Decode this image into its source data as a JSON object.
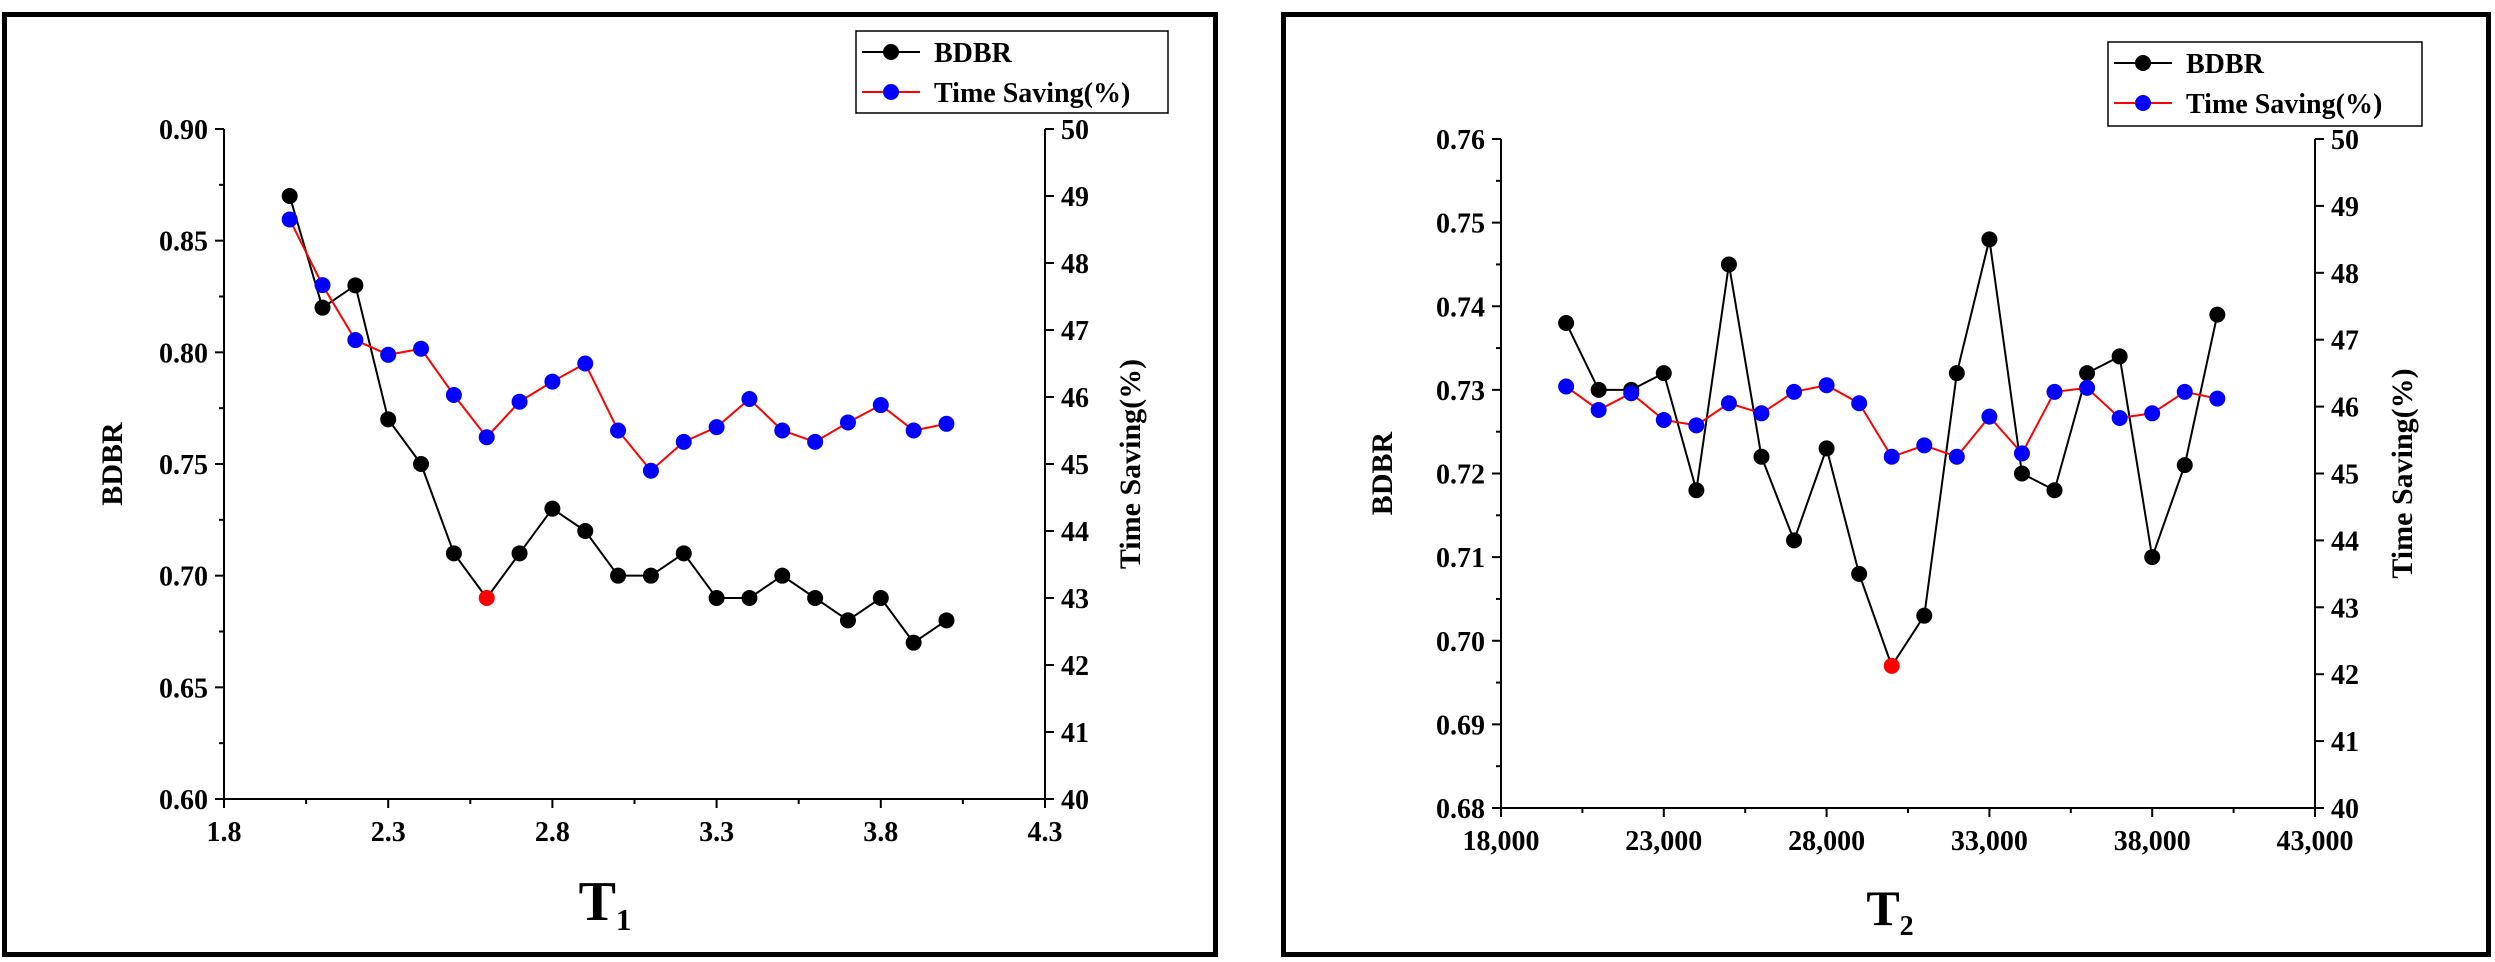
{
  "chart_data": [
    {
      "type": "line",
      "xlabel": "T",
      "xlabel_sub": "1",
      "ylabel": "BDBR",
      "y2label": "Time Saving(%)",
      "xlim": [
        1.8,
        4.3
      ],
      "ylim": [
        0.6,
        0.9
      ],
      "y2lim": [
        40,
        50
      ],
      "xticks": [
        1.8,
        2.3,
        2.8,
        3.3,
        3.8,
        4.3
      ],
      "xtick_labels": [
        "1.8",
        "2.3",
        "2.8",
        "3.3",
        "3.8",
        "4.3"
      ],
      "yticks": [
        0.6,
        0.65,
        0.7,
        0.75,
        0.8,
        0.85,
        0.9
      ],
      "ytick_labels": [
        "0.60",
        "0.65",
        "0.70",
        "0.75",
        "0.80",
        "0.85",
        "0.90"
      ],
      "y2ticks": [
        40,
        41,
        42,
        43,
        44,
        45,
        46,
        47,
        48,
        49,
        50
      ],
      "y2tick_labels": [
        "40",
        "41",
        "42",
        "43",
        "44",
        "45",
        "46",
        "47",
        "48",
        "49",
        "50"
      ],
      "legend": [
        "BDBR",
        "Time Saving(%)"
      ],
      "legend_position": "top-right",
      "x": [
        2.0,
        2.1,
        2.2,
        2.3,
        2.4,
        2.5,
        2.6,
        2.7,
        2.8,
        2.9,
        3.0,
        3.1,
        3.2,
        3.3,
        3.4,
        3.5,
        3.6,
        3.7,
        3.8,
        3.9,
        4.0
      ],
      "series": [
        {
          "name": "BDBR",
          "axis": "left",
          "line_color": "#000000",
          "marker_color": "#000000",
          "values": [
            0.87,
            0.82,
            0.83,
            0.77,
            0.75,
            0.71,
            0.69,
            0.71,
            0.73,
            0.72,
            0.7,
            0.7,
            0.71,
            0.69,
            0.69,
            0.7,
            0.69,
            0.68,
            0.69,
            0.67,
            0.68
          ],
          "highlight_index": 6,
          "highlight_color": "#ff0000"
        },
        {
          "name": "Time Saving(%)",
          "axis": "right",
          "line_color": "#ff0000",
          "marker_color": "#0000ff",
          "values": [
            48.65,
            47.67,
            46.85,
            46.63,
            46.72,
            46.03,
            45.4,
            45.93,
            46.23,
            46.5,
            45.5,
            44.9,
            45.33,
            45.55,
            45.97,
            45.5,
            45.33,
            45.62,
            45.88,
            45.5,
            45.6
          ]
        }
      ]
    },
    {
      "type": "line",
      "xlabel": "T",
      "xlabel_sub": "2",
      "ylabel": "BDBR",
      "y2label": "Time Saving(%)",
      "xlim": [
        18000,
        43000
      ],
      "ylim": [
        0.68,
        0.76
      ],
      "y2lim": [
        40,
        50
      ],
      "xticks": [
        18000,
        23000,
        28000,
        33000,
        38000,
        43000
      ],
      "xtick_labels": [
        "18,000",
        "23,000",
        "28,000",
        "33,000",
        "38,000",
        "43,000"
      ],
      "yticks": [
        0.68,
        0.69,
        0.7,
        0.71,
        0.72,
        0.73,
        0.74,
        0.75,
        0.76
      ],
      "ytick_labels": [
        "0.68",
        "0.69",
        "0.70",
        "0.71",
        "0.72",
        "0.73",
        "0.74",
        "0.75",
        "0.76"
      ],
      "y2ticks": [
        40,
        41,
        42,
        43,
        44,
        45,
        46,
        47,
        48,
        49,
        50
      ],
      "y2tick_labels": [
        "40",
        "41",
        "42",
        "43",
        "44",
        "45",
        "46",
        "47",
        "48",
        "49",
        "50"
      ],
      "legend": [
        "BDBR",
        "Time Saving(%)"
      ],
      "legend_position": "top-right",
      "x": [
        20000,
        21000,
        22000,
        23000,
        24000,
        25000,
        26000,
        27000,
        28000,
        29000,
        30000,
        31000,
        32000,
        33000,
        34000,
        35000,
        36000,
        37000,
        38000,
        39000,
        40000
      ],
      "series": [
        {
          "name": "BDBR",
          "axis": "left",
          "line_color": "#000000",
          "marker_color": "#000000",
          "values": [
            0.738,
            0.73,
            0.73,
            0.732,
            0.718,
            0.745,
            0.722,
            0.712,
            0.723,
            0.708,
            0.697,
            0.703,
            0.732,
            0.748,
            0.72,
            0.718,
            0.732,
            0.734,
            0.71,
            0.721,
            0.739
          ],
          "highlight_index": 10,
          "highlight_color": "#ff0000"
        },
        {
          "name": "Time Saving(%)",
          "axis": "right",
          "line_color": "#ff0000",
          "marker_color": "#0000ff",
          "values": [
            46.3,
            45.95,
            46.2,
            45.8,
            45.72,
            46.05,
            45.9,
            46.22,
            46.32,
            46.05,
            45.25,
            45.42,
            45.25,
            45.85,
            45.3,
            46.22,
            46.28,
            45.83,
            45.9,
            46.22,
            46.12
          ]
        }
      ]
    }
  ]
}
